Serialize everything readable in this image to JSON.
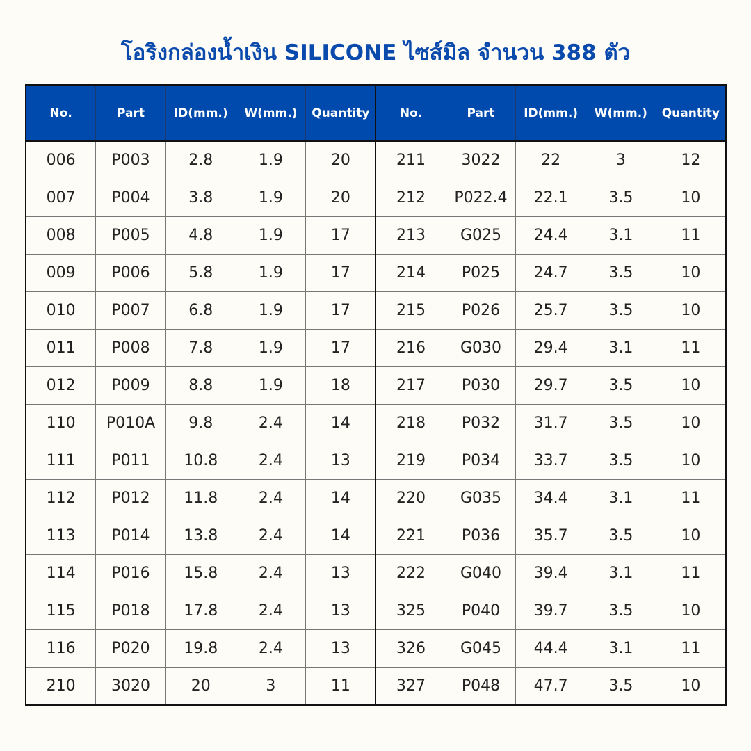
{
  "title": "โอริงกล่องน้ำเงิน SILICONE ไซส์มิล จำนวน 388 ตัว",
  "colors": {
    "header_bg": "#004aad",
    "title": "#0a4aad",
    "background": "#fefcf7"
  },
  "table": {
    "headers": [
      "No.",
      "Part",
      "ID(mm.)",
      "W(mm.)",
      "Quantity",
      "No.",
      "Part",
      "ID(mm.)",
      "W(mm.)",
      "Quantity"
    ],
    "rows": [
      [
        "006",
        "P003",
        "2.8",
        "1.9",
        "20",
        "211",
        "3022",
        "22",
        "3",
        "12"
      ],
      [
        "007",
        "P004",
        "3.8",
        "1.9",
        "20",
        "212",
        "P022.4",
        "22.1",
        "3.5",
        "10"
      ],
      [
        "008",
        "P005",
        "4.8",
        "1.9",
        "17",
        "213",
        "G025",
        "24.4",
        "3.1",
        "11"
      ],
      [
        "009",
        "P006",
        "5.8",
        "1.9",
        "17",
        "214",
        "P025",
        "24.7",
        "3.5",
        "10"
      ],
      [
        "010",
        "P007",
        "6.8",
        "1.9",
        "17",
        "215",
        "P026",
        "25.7",
        "3.5",
        "10"
      ],
      [
        "011",
        "P008",
        "7.8",
        "1.9",
        "17",
        "216",
        "G030",
        "29.4",
        "3.1",
        "11"
      ],
      [
        "012",
        "P009",
        "8.8",
        "1.9",
        "18",
        "217",
        "P030",
        "29.7",
        "3.5",
        "10"
      ],
      [
        "110",
        "P010A",
        "9.8",
        "2.4",
        "14",
        "218",
        "P032",
        "31.7",
        "3.5",
        "10"
      ],
      [
        "111",
        "P011",
        "10.8",
        "2.4",
        "13",
        "219",
        "P034",
        "33.7",
        "3.5",
        "10"
      ],
      [
        "112",
        "P012",
        "11.8",
        "2.4",
        "14",
        "220",
        "G035",
        "34.4",
        "3.1",
        "11"
      ],
      [
        "113",
        "P014",
        "13.8",
        "2.4",
        "14",
        "221",
        "P036",
        "35.7",
        "3.5",
        "10"
      ],
      [
        "114",
        "P016",
        "15.8",
        "2.4",
        "13",
        "222",
        "G040",
        "39.4",
        "3.1",
        "11"
      ],
      [
        "115",
        "P018",
        "17.8",
        "2.4",
        "13",
        "325",
        "P040",
        "39.7",
        "3.5",
        "10"
      ],
      [
        "116",
        "P020",
        "19.8",
        "2.4",
        "13",
        "326",
        "G045",
        "44.4",
        "3.1",
        "11"
      ],
      [
        "210",
        "3020",
        "20",
        "3",
        "11",
        "327",
        "P048",
        "47.7",
        "3.5",
        "10"
      ]
    ]
  }
}
